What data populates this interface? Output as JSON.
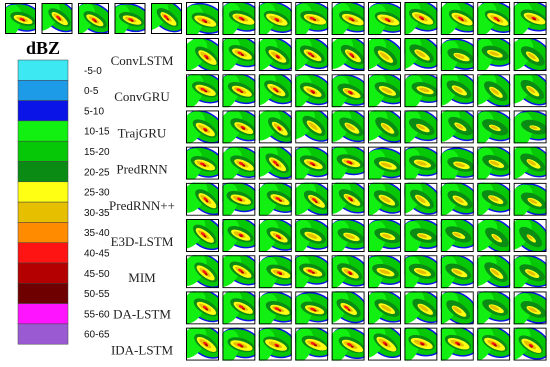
{
  "legend": {
    "title": "dBZ",
    "items": [
      {
        "label": "-5-0",
        "color": "#3ee8f2"
      },
      {
        "label": "0-5",
        "color": "#1e9be6"
      },
      {
        "label": "5-10",
        "color": "#0a14e6"
      },
      {
        "label": "10-15",
        "color": "#12f012"
      },
      {
        "label": "15-20",
        "color": "#06c806"
      },
      {
        "label": "20-25",
        "color": "#0a8c14"
      },
      {
        "label": "25-30",
        "color": "#ffff14"
      },
      {
        "label": "30-35",
        "color": "#e6c000"
      },
      {
        "label": "35-40",
        "color": "#ff8c00"
      },
      {
        "label": "40-45",
        "color": "#ff1414"
      },
      {
        "label": "45-50",
        "color": "#b40000"
      },
      {
        "label": "50-55",
        "color": "#6e0000"
      },
      {
        "label": "55-60",
        "color": "#ff14ff"
      },
      {
        "label": "60-65",
        "color": "#9a5ad2"
      }
    ]
  },
  "rows": [
    "ConvLSTM",
    "ConvGRU",
    "TrajGRU",
    "PredRNN",
    "PredRNN++",
    "E3D-LSTM",
    "MIM",
    "DA-LSTM",
    "IDA-LSTM"
  ]
}
